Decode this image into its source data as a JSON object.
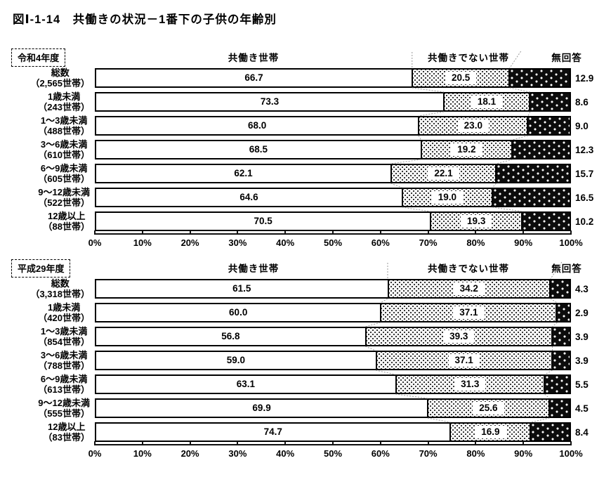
{
  "title": "図Ⅰ-1-14　共働きの状況－1番下の子供の年齢別",
  "axis_ticks": [
    "0%",
    "10%",
    "20%",
    "30%",
    "40%",
    "50%",
    "60%",
    "70%",
    "80%",
    "90%",
    "100%"
  ],
  "colors": {
    "bar_border": "#000000",
    "no_answer_fill": "#0c0c0c",
    "background": "#ffffff"
  },
  "chart_data": [
    {
      "type": "bar",
      "stacked": true,
      "orientation": "horizontal",
      "period": "令和4年度",
      "legend": [
        "共働き世帯",
        "共働きでない世帯",
        "無回答"
      ],
      "xlim": [
        0,
        100
      ],
      "xlabel": "%",
      "categories": [
        {
          "label": "総数",
          "households": "（2,565世帯）"
        },
        {
          "label": "1歳未満",
          "households": "（243世帯）"
        },
        {
          "label": "1～3歳未満",
          "households": "（488世帯）"
        },
        {
          "label": "3～6歳未満",
          "households": "（610世帯）"
        },
        {
          "label": "6～9歳未満",
          "households": "（605世帯）"
        },
        {
          "label": "9～12歳未満",
          "households": "（522世帯）"
        },
        {
          "label": "12歳以上",
          "households": "（88世帯）"
        }
      ],
      "series": [
        {
          "name": "共働き世帯",
          "values": [
            66.7,
            73.3,
            68.0,
            68.5,
            62.1,
            64.6,
            70.5
          ]
        },
        {
          "name": "共働きでない世帯",
          "values": [
            20.5,
            18.1,
            23.0,
            19.2,
            22.1,
            19.0,
            19.3
          ]
        },
        {
          "name": "無回答",
          "values": [
            12.9,
            8.6,
            9.0,
            12.3,
            15.7,
            16.5,
            10.2
          ]
        }
      ]
    },
    {
      "type": "bar",
      "stacked": true,
      "orientation": "horizontal",
      "period": "平成29年度",
      "legend": [
        "共働き世帯",
        "共働きでない世帯",
        "無回答"
      ],
      "xlim": [
        0,
        100
      ],
      "xlabel": "%",
      "categories": [
        {
          "label": "総数",
          "households": "（3,318世帯）"
        },
        {
          "label": "1歳未満",
          "households": "（420世帯）"
        },
        {
          "label": "1～3歳未満",
          "households": "（854世帯）"
        },
        {
          "label": "3～6歳未満",
          "households": "（788世帯）"
        },
        {
          "label": "6～9歳未満",
          "households": "（613世帯）"
        },
        {
          "label": "9～12歳未満",
          "households": "（555世帯）"
        },
        {
          "label": "12歳以上",
          "households": "（83世帯）"
        }
      ],
      "series": [
        {
          "name": "共働き世帯",
          "values": [
            61.5,
            60.0,
            56.8,
            59.0,
            63.1,
            69.9,
            74.7
          ]
        },
        {
          "name": "共働きでない世帯",
          "values": [
            34.2,
            37.1,
            39.3,
            37.1,
            31.3,
            25.6,
            16.9
          ]
        },
        {
          "name": "無回答",
          "values": [
            4.3,
            2.9,
            3.9,
            3.9,
            5.5,
            4.5,
            8.4
          ]
        }
      ]
    }
  ]
}
